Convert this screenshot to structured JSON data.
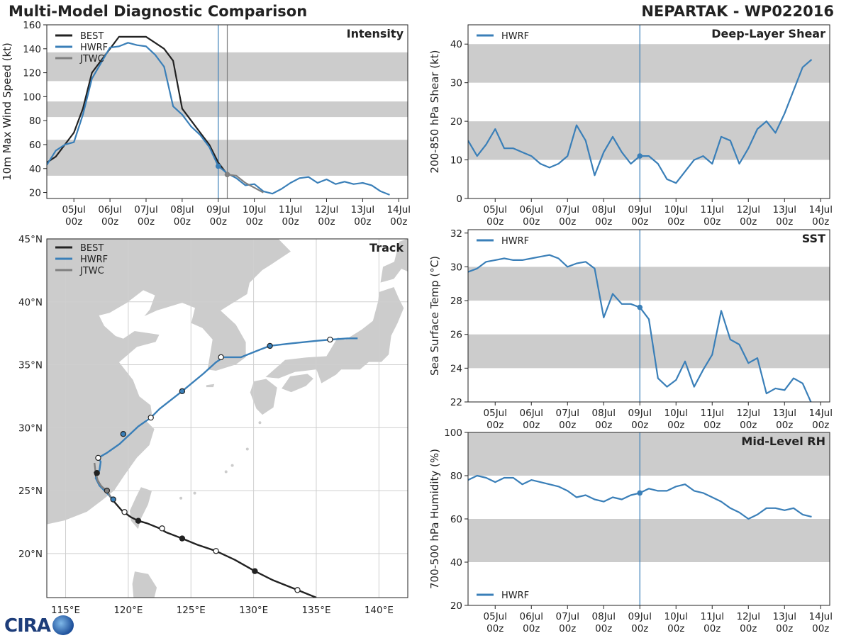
{
  "header": {
    "title_left": "Multi-Model Diagnostic Comparison",
    "title_right": "NEPARTAK - WP022016"
  },
  "colors": {
    "best": "#222222",
    "hwrf": "#3a7fb8",
    "jtwc": "#808080",
    "band": "#cccccc",
    "land": "#cccccc",
    "grid": "#cfcfcf"
  },
  "time_ticks": [
    {
      "day": 5,
      "line1": "05Jul",
      "line2": "00z"
    },
    {
      "day": 6,
      "line1": "06Jul",
      "line2": "00z"
    },
    {
      "day": 7,
      "line1": "07Jul",
      "line2": "00z"
    },
    {
      "day": 8,
      "line1": "08Jul",
      "line2": "00z"
    },
    {
      "day": 9,
      "line1": "09Jul",
      "line2": "00z"
    },
    {
      "day": 10,
      "line1": "10Jul",
      "line2": "00z"
    },
    {
      "day": 11,
      "line1": "11Jul",
      "line2": "00z"
    },
    {
      "day": 12,
      "line1": "12Jul",
      "line2": "00z"
    },
    {
      "day": 13,
      "line1": "13Jul",
      "line2": "00z"
    },
    {
      "day": 14,
      "line1": "14Jul",
      "line2": "00z"
    }
  ],
  "chart_data": [
    {
      "type": "line",
      "title": "Intensity",
      "ylabel": "10m Max Wind Speed (kt)",
      "xlabel": "",
      "xlim": [
        4.25,
        14.25
      ],
      "ylim": [
        15,
        160
      ],
      "yticks": [
        20,
        40,
        60,
        80,
        100,
        120,
        140,
        160
      ],
      "bands": [
        [
          34,
          64
        ],
        [
          83,
          96
        ],
        [
          113,
          137
        ]
      ],
      "vlines": [
        {
          "x": 9.0,
          "color": "hwrf"
        },
        {
          "x": 9.25,
          "color": "jtwc"
        }
      ],
      "legend": [
        "BEST",
        "HWRF",
        "JTWC"
      ],
      "series": [
        {
          "name": "BEST",
          "color": "best",
          "x": [
            4.25,
            4.5,
            4.75,
            5.0,
            5.25,
            5.5,
            5.75,
            6.0,
            6.25,
            6.5,
            6.75,
            7.0,
            7.25,
            7.5,
            7.75,
            8.0,
            8.25,
            8.5,
            8.75,
            9.0,
            9.25
          ],
          "y": [
            45,
            50,
            60,
            70,
            90,
            120,
            130,
            140,
            150,
            150,
            150,
            150,
            145,
            140,
            130,
            90,
            80,
            70,
            60,
            45,
            35
          ]
        },
        {
          "name": "HWRF",
          "color": "hwrf",
          "x": [
            4.25,
            4.5,
            4.75,
            5.0,
            5.25,
            5.5,
            5.75,
            6.0,
            6.25,
            6.5,
            6.75,
            7.0,
            7.25,
            7.5,
            7.75,
            8.0,
            8.25,
            8.5,
            8.75,
            9.0,
            9.25,
            9.5,
            9.75,
            10.0,
            10.25,
            10.5,
            10.75,
            11.0,
            11.25,
            11.5,
            11.75,
            12.0,
            12.25,
            12.5,
            12.75,
            13.0,
            13.25,
            13.5,
            13.75
          ],
          "y": [
            43,
            55,
            60,
            62,
            85,
            115,
            128,
            141,
            142,
            145,
            143,
            142,
            135,
            125,
            92,
            85,
            75,
            68,
            58,
            42,
            36,
            32,
            26,
            27,
            21,
            19,
            23,
            28,
            32,
            33,
            28,
            31,
            27,
            29,
            27,
            28,
            26,
            21,
            18
          ]
        },
        {
          "name": "JTWC",
          "color": "jtwc",
          "x": [
            9.25,
            9.5,
            9.75,
            10.0,
            10.25
          ],
          "y": [
            35,
            34,
            28,
            24,
            20
          ]
        }
      ],
      "markers": [
        {
          "series": "HWRF",
          "x": 9.0,
          "y": 42
        },
        {
          "series": "JTWC",
          "x": 9.25,
          "y": 35
        }
      ]
    },
    {
      "type": "line",
      "title": "Deep-Layer Shear",
      "ylabel": "200-850 hPa Shear (kt)",
      "xlabel": "",
      "xlim": [
        4.25,
        14.25
      ],
      "ylim": [
        0,
        45
      ],
      "yticks": [
        0,
        10,
        20,
        30,
        40
      ],
      "bands": [
        [
          10,
          20
        ],
        [
          30,
          40
        ]
      ],
      "vlines": [
        {
          "x": 9.0,
          "color": "hwrf"
        }
      ],
      "legend": [
        "HWRF"
      ],
      "series": [
        {
          "name": "HWRF",
          "color": "hwrf",
          "x": [
            4.25,
            4.5,
            4.75,
            5.0,
            5.25,
            5.5,
            5.75,
            6.0,
            6.25,
            6.5,
            6.75,
            7.0,
            7.25,
            7.5,
            7.75,
            8.0,
            8.25,
            8.5,
            8.75,
            9.0,
            9.25,
            9.5,
            9.75,
            10.0,
            10.25,
            10.5,
            10.75,
            11.0,
            11.25,
            11.5,
            11.75,
            12.0,
            12.25,
            12.5,
            12.75,
            13.0,
            13.25,
            13.5,
            13.75
          ],
          "y": [
            15,
            11,
            14,
            18,
            13,
            13,
            12,
            11,
            9,
            8,
            9,
            11,
            19,
            15,
            6,
            12,
            16,
            12,
            9,
            11,
            11,
            9,
            5,
            4,
            7,
            10,
            11,
            9,
            16,
            15,
            9,
            13,
            18,
            20,
            17,
            22,
            28,
            34,
            36
          ]
        }
      ],
      "markers": [
        {
          "series": "HWRF",
          "x": 9.0,
          "y": 11
        }
      ]
    },
    {
      "type": "line",
      "title": "SST",
      "ylabel": "Sea Surface Temp (°C)",
      "xlabel": "",
      "xlim": [
        4.25,
        14.25
      ],
      "ylim": [
        22,
        32.2
      ],
      "yticks": [
        22,
        24,
        26,
        28,
        30,
        32
      ],
      "bands": [
        [
          24,
          26
        ],
        [
          28,
          30
        ]
      ],
      "vlines": [
        {
          "x": 9.0,
          "color": "hwrf"
        }
      ],
      "legend": [
        "HWRF"
      ],
      "series": [
        {
          "name": "HWRF",
          "color": "hwrf",
          "x": [
            4.25,
            4.5,
            4.75,
            5.0,
            5.25,
            5.5,
            5.75,
            6.0,
            6.25,
            6.5,
            6.75,
            7.0,
            7.25,
            7.5,
            7.75,
            8.0,
            8.25,
            8.5,
            8.75,
            9.0,
            9.25,
            9.5,
            9.75,
            10.0,
            10.25,
            10.5,
            10.75,
            11.0,
            11.25,
            11.5,
            11.75,
            12.0,
            12.25,
            12.5,
            12.75,
            13.0,
            13.25,
            13.5,
            13.75
          ],
          "y": [
            29.7,
            29.9,
            30.3,
            30.4,
            30.5,
            30.4,
            30.4,
            30.5,
            30.6,
            30.7,
            30.5,
            30.0,
            30.2,
            30.3,
            29.9,
            27.0,
            28.4,
            27.8,
            27.8,
            27.6,
            26.9,
            23.4,
            22.9,
            23.3,
            24.4,
            22.9,
            23.9,
            24.8,
            27.4,
            25.7,
            25.4,
            24.3,
            24.6,
            22.5,
            22.8,
            22.7,
            23.4,
            23.1,
            21.9
          ]
        }
      ],
      "markers": [
        {
          "series": "HWRF",
          "x": 9.0,
          "y": 27.6
        }
      ]
    },
    {
      "type": "line",
      "title": "Mid-Level RH",
      "ylabel": "700-500 hPa Humidity (%)",
      "xlabel": "",
      "xlim": [
        4.25,
        14.25
      ],
      "ylim": [
        20,
        100
      ],
      "yticks": [
        20,
        40,
        60,
        80,
        100
      ],
      "bands": [
        [
          40,
          60
        ],
        [
          80,
          100
        ]
      ],
      "vlines": [
        {
          "x": 9.0,
          "color": "hwrf"
        }
      ],
      "legend": [
        "HWRF"
      ],
      "legend_position": "bottom-left",
      "series": [
        {
          "name": "HWRF",
          "color": "hwrf",
          "x": [
            4.25,
            4.5,
            4.75,
            5.0,
            5.25,
            5.5,
            5.75,
            6.0,
            6.25,
            6.5,
            6.75,
            7.0,
            7.25,
            7.5,
            7.75,
            8.0,
            8.25,
            8.5,
            8.75,
            9.0,
            9.25,
            9.5,
            9.75,
            10.0,
            10.25,
            10.5,
            10.75,
            11.0,
            11.25,
            11.5,
            11.75,
            12.0,
            12.25,
            12.5,
            12.75,
            13.0,
            13.25,
            13.5,
            13.75
          ],
          "y": [
            78,
            80,
            79,
            77,
            79,
            79,
            76,
            78,
            77,
            76,
            75,
            73,
            70,
            71,
            69,
            68,
            70,
            69,
            71,
            72,
            74,
            73,
            73,
            75,
            76,
            73,
            72,
            70,
            68,
            65,
            63,
            60,
            62,
            65,
            65,
            64,
            65,
            62,
            61
          ]
        }
      ],
      "markers": [
        {
          "series": "HWRF",
          "x": 9.0,
          "y": 72
        }
      ]
    },
    {
      "type": "scatter",
      "title": "Track",
      "xlabel": "",
      "ylabel": "",
      "xlim": [
        113.5,
        142.3
      ],
      "ylim": [
        16.5,
        45.0
      ],
      "xticks": [
        {
          "v": 115,
          "label": "115°E"
        },
        {
          "v": 120,
          "label": "120°E"
        },
        {
          "v": 125,
          "label": "125°E"
        },
        {
          "v": 130,
          "label": "130°E"
        },
        {
          "v": 135,
          "label": "135°E"
        },
        {
          "v": 140,
          "label": "140°E"
        }
      ],
      "yticks": [
        {
          "v": 20,
          "label": "20°N"
        },
        {
          "v": 25,
          "label": "25°N"
        },
        {
          "v": 30,
          "label": "30°N"
        },
        {
          "v": 35,
          "label": "35°N"
        },
        {
          "v": 40,
          "label": "40°N"
        },
        {
          "v": 45,
          "label": "45°N"
        }
      ],
      "legend": [
        "BEST",
        "HWRF",
        "JTWC"
      ],
      "series": [
        {
          "name": "BEST",
          "color": "best",
          "lon": [
            135.0,
            133.5,
            131.5,
            130.1,
            128.5,
            127.0,
            125.5,
            124.3,
            123.0,
            122.5,
            121.5,
            120.8,
            120.2,
            119.5,
            118.8,
            118.2,
            117.8,
            117.5,
            117.3
          ],
          "lat": [
            16.5,
            17.1,
            17.9,
            18.6,
            19.5,
            20.2,
            20.7,
            21.2,
            21.7,
            22.0,
            22.4,
            22.6,
            22.9,
            23.4,
            24.2,
            25.0,
            25.4,
            25.9,
            26.5
          ],
          "points": [
            {
              "lon": 133.5,
              "lat": 17.1,
              "filled": false
            },
            {
              "lon": 130.1,
              "lat": 18.6,
              "filled": true
            },
            {
              "lon": 127.0,
              "lat": 20.2,
              "filled": false
            },
            {
              "lon": 124.3,
              "lat": 21.2,
              "filled": true
            },
            {
              "lon": 122.7,
              "lat": 22.0,
              "filled": false
            },
            {
              "lon": 120.8,
              "lat": 22.6,
              "filled": true
            },
            {
              "lon": 119.7,
              "lat": 23.3,
              "filled": false
            },
            {
              "lon": 117.5,
              "lat": 26.4,
              "filled": true
            }
          ]
        },
        {
          "name": "HWRF",
          "color": "hwrf",
          "lon": [
            118.8,
            118.2,
            117.7,
            117.4,
            117.7,
            117.8,
            117.6,
            118.3,
            119.3,
            120.8,
            121.8,
            122.5,
            124.3,
            126.0,
            127.0,
            127.6,
            129.0,
            130.5,
            131.3,
            133.0,
            135.0,
            136.2,
            137.5,
            138.3
          ],
          "lat": [
            24.3,
            24.9,
            25.4,
            26.0,
            26.6,
            27.3,
            27.6,
            28.0,
            28.7,
            30.1,
            30.8,
            31.5,
            32.9,
            34.3,
            35.2,
            35.6,
            35.6,
            36.2,
            36.5,
            36.7,
            36.9,
            37.0,
            37.1,
            37.1
          ],
          "points": [
            {
              "lon": 118.8,
              "lat": 24.3,
              "filled": true
            },
            {
              "lon": 117.6,
              "lat": 27.6,
              "filled": false
            },
            {
              "lon": 119.6,
              "lat": 29.5,
              "filled": true
            },
            {
              "lon": 121.8,
              "lat": 30.8,
              "filled": false
            },
            {
              "lon": 124.3,
              "lat": 32.9,
              "filled": true
            },
            {
              "lon": 127.4,
              "lat": 35.6,
              "filled": false
            },
            {
              "lon": 131.3,
              "lat": 36.5,
              "filled": true
            },
            {
              "lon": 136.1,
              "lat": 37.0,
              "filled": false
            }
          ]
        },
        {
          "name": "JTWC",
          "color": "jtwc",
          "lon": [
            117.3,
            117.4,
            117.6,
            117.9,
            118.3,
            118.6
          ],
          "lat": [
            27.2,
            26.4,
            25.7,
            25.3,
            25.0,
            24.5
          ],
          "points": [
            {
              "lon": 118.3,
              "lat": 25.0,
              "filled": true
            }
          ]
        }
      ]
    }
  ]
}
